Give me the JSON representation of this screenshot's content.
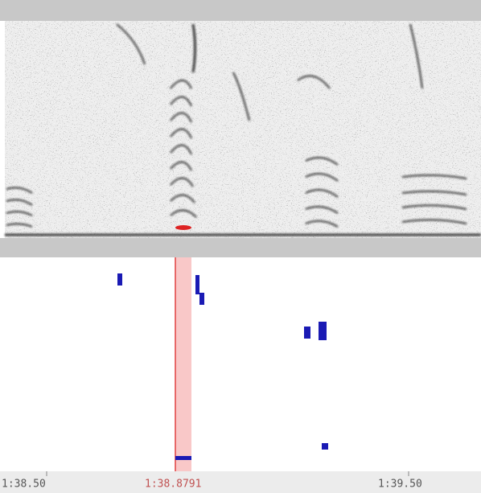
{
  "timeline": {
    "labels": [
      "1:38.50",
      "1:39.50"
    ],
    "cursor_label": "1:38.8791"
  }
}
